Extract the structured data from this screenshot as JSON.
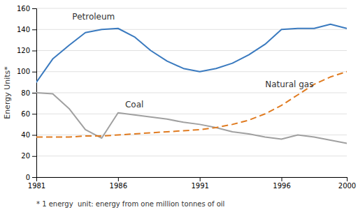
{
  "chart_data": {
    "type": "line",
    "y_label": "Energy Units*",
    "footnote": "* 1 energy  unit: energy from one million tonnes of oil",
    "x": [
      1981,
      1982,
      1983,
      1984,
      1985,
      1986,
      1987,
      1988,
      1989,
      1990,
      1991,
      1992,
      1993,
      1994,
      1995,
      1996,
      1997,
      1998,
      1999,
      2000
    ],
    "xlim": [
      1981,
      2000
    ],
    "xticks": [
      1981,
      1986,
      1991,
      1996,
      2000
    ],
    "ylim": [
      0,
      160
    ],
    "yticks": [
      0,
      20,
      40,
      60,
      80,
      100,
      120,
      140,
      160
    ],
    "grid": true,
    "series": [
      {
        "color": "#3a7abf",
        "line_style": "solid",
        "values": [
          90,
          112,
          125,
          137,
          140,
          141,
          133,
          120,
          110,
          103,
          100,
          103,
          108,
          116,
          126,
          140,
          141,
          141,
          145,
          141
        ]
      },
      {
        "color": "#a0a0a0",
        "line_style": "solid",
        "values": [
          80,
          79,
          65,
          45,
          37,
          61,
          59,
          57,
          55,
          52,
          50,
          47,
          43,
          41,
          38,
          36,
          40,
          38,
          35,
          32
        ]
      },
      {
        "color": "#e07b20",
        "line_style": "dashed",
        "values": [
          38,
          38,
          38,
          39,
          39,
          40,
          41,
          42,
          43,
          44,
          45,
          47,
          50,
          54,
          60,
          68,
          78,
          88,
          95,
          100
        ]
      }
    ],
    "annotations": [
      {
        "text": "Petroleum",
        "x": 1984.5,
        "y": 148
      },
      {
        "text": "Coal",
        "x": 1987.0,
        "y": 65
      },
      {
        "text": "Natural gas",
        "x": 1995.0,
        "y": 84
      }
    ]
  }
}
